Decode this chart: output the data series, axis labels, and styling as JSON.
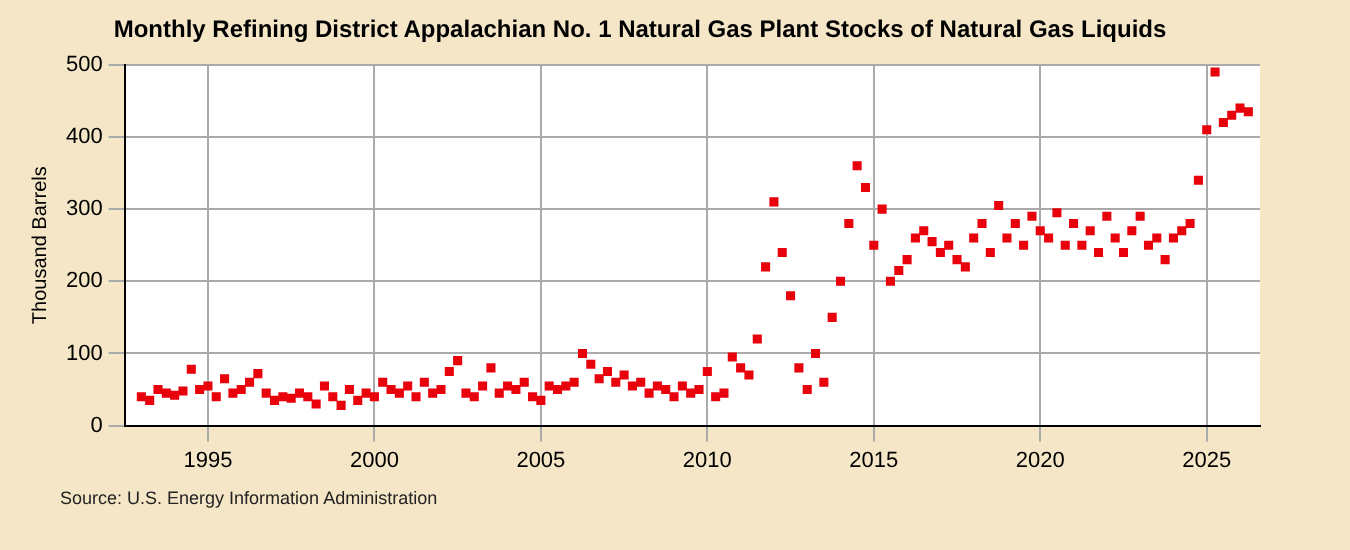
{
  "chart_data": {
    "type": "scatter",
    "title": "Monthly Refining District Appalachian No. 1 Natural Gas Plant Stocks of Natural Gas Liquids",
    "ylabel": "Thousand Barrels",
    "annotations": [
      "Source: U.S. Energy Information Administration"
    ],
    "x": [
      1993,
      1993.25,
      1993.5,
      1993.75,
      1994,
      1994.25,
      1994.5,
      1994.75,
      1995,
      1995.25,
      1995.5,
      1995.75,
      1996,
      1996.25,
      1996.5,
      1996.75,
      1997,
      1997.25,
      1997.5,
      1997.75,
      1998,
      1998.25,
      1998.5,
      1998.75,
      1999,
      1999.25,
      1999.5,
      1999.75,
      2000,
      2000.25,
      2000.5,
      2000.75,
      2001,
      2001.25,
      2001.5,
      2001.75,
      2002,
      2002.25,
      2002.5,
      2002.75,
      2003,
      2003.25,
      2003.5,
      2003.75,
      2004,
      2004.25,
      2004.5,
      2004.75,
      2005,
      2005.25,
      2005.5,
      2005.75,
      2006,
      2006.25,
      2006.5,
      2006.75,
      2007,
      2007.25,
      2007.5,
      2007.75,
      2008,
      2008.25,
      2008.5,
      2008.75,
      2009,
      2009.25,
      2009.5,
      2009.75,
      2010,
      2010.25,
      2010.5,
      2010.75,
      2011,
      2011.25,
      2011.5,
      2011.75,
      2012,
      2012.25,
      2012.5,
      2012.75,
      2013,
      2013.25,
      2013.5,
      2013.75,
      2014,
      2014.25,
      2014.5,
      2014.75,
      2015,
      2015.25,
      2015.5,
      2015.75,
      2016,
      2016.25,
      2016.5,
      2016.75,
      2017,
      2017.25,
      2017.5,
      2017.75,
      2018,
      2018.25,
      2018.5,
      2018.75,
      2019,
      2019.25,
      2019.5,
      2019.75,
      2020,
      2020.25,
      2020.5,
      2020.75,
      2021,
      2021.25,
      2021.5,
      2021.75,
      2022,
      2022.25,
      2022.5,
      2022.75,
      2023,
      2023.25,
      2023.5,
      2023.75,
      2024,
      2024.25,
      2024.5,
      2024.75,
      2025,
      2025.25,
      2025.5,
      2025.75,
      2026,
      2026.25
    ],
    "values": [
      40,
      35,
      50,
      45,
      42,
      48,
      78,
      50,
      55,
      40,
      65,
      45,
      50,
      60,
      72,
      45,
      35,
      40,
      38,
      45,
      40,
      30,
      55,
      40,
      28,
      50,
      35,
      45,
      40,
      60,
      50,
      45,
      55,
      40,
      60,
      45,
      50,
      75,
      90,
      45,
      40,
      55,
      80,
      45,
      55,
      50,
      60,
      40,
      35,
      55,
      50,
      55,
      60,
      100,
      85,
      65,
      75,
      60,
      70,
      55,
      60,
      45,
      55,
      50,
      40,
      55,
      45,
      50,
      75,
      40,
      45,
      95,
      80,
      70,
      120,
      220,
      310,
      240,
      180,
      80,
      50,
      100,
      60,
      150,
      200,
      280,
      360,
      330,
      250,
      300,
      200,
      215,
      230,
      260,
      270,
      255,
      240,
      250,
      230,
      220,
      260,
      280,
      240,
      305,
      260,
      280,
      250,
      290,
      270,
      260,
      295,
      250,
      280,
      250,
      270,
      240,
      290,
      260,
      240,
      270,
      290,
      250,
      260,
      230,
      260,
      270,
      280,
      340,
      410,
      490,
      420,
      430,
      440,
      435
    ],
    "color": "#e8000b",
    "marker": "square",
    "xlim": [
      1992.5,
      2026.6
    ],
    "xticks": [
      1995,
      2000,
      2005,
      2010,
      2015,
      2020,
      2025
    ],
    "ylim": [
      0,
      500
    ],
    "yticks": [
      0,
      100,
      200,
      300,
      400,
      500
    ],
    "grid": true
  }
}
